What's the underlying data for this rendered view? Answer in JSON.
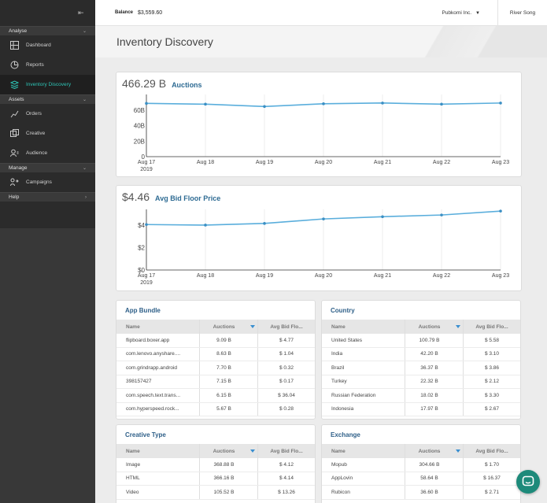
{
  "sidebar": {
    "sections": [
      {
        "label": "Analyse"
      },
      {
        "label": "Assets"
      },
      {
        "label": "Manage"
      },
      {
        "label": "Help"
      }
    ],
    "items": [
      {
        "label": "Dashboard",
        "icon": "dashboard-icon"
      },
      {
        "label": "Reports",
        "icon": "reports-icon"
      },
      {
        "label": "Inventory Discovery",
        "icon": "inventory-icon",
        "active": true
      },
      {
        "label": "Orders",
        "icon": "orders-icon"
      },
      {
        "label": "Creative",
        "icon": "creative-icon"
      },
      {
        "label": "Audience",
        "icon": "audience-icon"
      },
      {
        "label": "Campaigns",
        "icon": "campaigns-icon"
      }
    ]
  },
  "topbar": {
    "balance_label": "Balance",
    "balance_value": "$3,559.60",
    "org": "Pubkomi Inc.",
    "user": "River Song"
  },
  "page": {
    "title": "Inventory Discovery"
  },
  "colors": {
    "accent": "#2ec4b6",
    "line": "#5aaedc",
    "link": "#2e6b93",
    "sidebar": "#2b2b2b"
  },
  "auctions_chart": {
    "metric": "466.29 B",
    "label": "Auctions",
    "y_ticks": [
      "60B",
      "40B",
      "20B",
      "0"
    ],
    "x_ticks": [
      "Aug 17",
      "Aug 18",
      "Aug 19",
      "Aug 20",
      "Aug 21",
      "Aug 22",
      "Aug 23"
    ],
    "year": "2019"
  },
  "bidfloor_chart": {
    "metric": "$4.46",
    "label": "Avg Bid Floor Price",
    "y_ticks": [
      "$4",
      "$2",
      "$0"
    ],
    "x_ticks": [
      "Aug 17",
      "Aug 18",
      "Aug 19",
      "Aug 20",
      "Aug 21",
      "Aug 22",
      "Aug 23"
    ],
    "year": "2019"
  },
  "chart_data": [
    {
      "type": "line",
      "title": "Auctions",
      "x": [
        "Aug 17",
        "Aug 18",
        "Aug 19",
        "Aug 20",
        "Aug 21",
        "Aug 22",
        "Aug 23"
      ],
      "series": [
        {
          "name": "Auctions",
          "values": [
            68.5,
            67.5,
            64.5,
            68.0,
            69.0,
            67.5,
            69.0
          ]
        }
      ],
      "ylim": [
        0,
        80
      ],
      "grid": true
    },
    {
      "type": "line",
      "title": "Avg Bid Floor Price",
      "x": [
        "Aug 17",
        "Aug 18",
        "Aug 19",
        "Aug 20",
        "Aug 21",
        "Aug 22",
        "Aug 23"
      ],
      "series": [
        {
          "name": "Avg Bid Floor Price",
          "values": [
            4.05,
            4.0,
            4.15,
            4.55,
            4.75,
            4.9,
            5.25
          ]
        }
      ],
      "ylim": [
        0,
        5.4
      ],
      "grid": true
    }
  ],
  "tables": {
    "app_bundle": {
      "title": "App Bundle",
      "headers": [
        "Name",
        "Auctions",
        "Avg Bid Flo..."
      ],
      "rows": [
        [
          "flipboard.boxer.app",
          "9.09 B",
          "$ 4.77"
        ],
        [
          "com.lenovo.anyshare....",
          "8.63 B",
          "$ 1.04"
        ],
        [
          "com.grindrapp.android",
          "7.70 B",
          "$ 0.32"
        ],
        [
          "398157427",
          "7.15 B",
          "$ 0.17"
        ],
        [
          "com.speech.text.trans...",
          "6.15 B",
          "$ 36.04"
        ],
        [
          "com.hyperspeed.rock...",
          "5.67 B",
          "$ 0.28"
        ]
      ]
    },
    "country": {
      "title": "Country",
      "headers": [
        "Name",
        "Auctions",
        "Avg Bid Flo..."
      ],
      "rows": [
        [
          "United States",
          "100.79 B",
          "$ 5.58"
        ],
        [
          "India",
          "42.20 B",
          "$ 3.10"
        ],
        [
          "Brazil",
          "36.37 B",
          "$ 3.86"
        ],
        [
          "Turkey",
          "22.32 B",
          "$ 2.12"
        ],
        [
          "Russian Federation",
          "18.02 B",
          "$ 3.30"
        ],
        [
          "Indonesia",
          "17.97 B",
          "$ 2.67"
        ]
      ]
    },
    "creative_type": {
      "title": "Creative Type",
      "headers": [
        "Name",
        "Auctions",
        "Avg Bid Flo..."
      ],
      "rows": [
        [
          "Image",
          "368.88 B",
          "$ 4.12"
        ],
        [
          "HTML",
          "366.16 B",
          "$ 4.14"
        ],
        [
          "Video",
          "105.52 B",
          "$ 13.26"
        ]
      ]
    },
    "exchange": {
      "title": "Exchange",
      "headers": [
        "Name",
        "Auctions",
        "Avg Bid Flo..."
      ],
      "rows": [
        [
          "Mopub",
          "304.66 B",
          "$ 1.70"
        ],
        [
          "AppLovin",
          "58.64 B",
          "$ 16.37"
        ],
        [
          "Rubicon",
          "36.60 B",
          "$ 2.71"
        ]
      ]
    }
  }
}
